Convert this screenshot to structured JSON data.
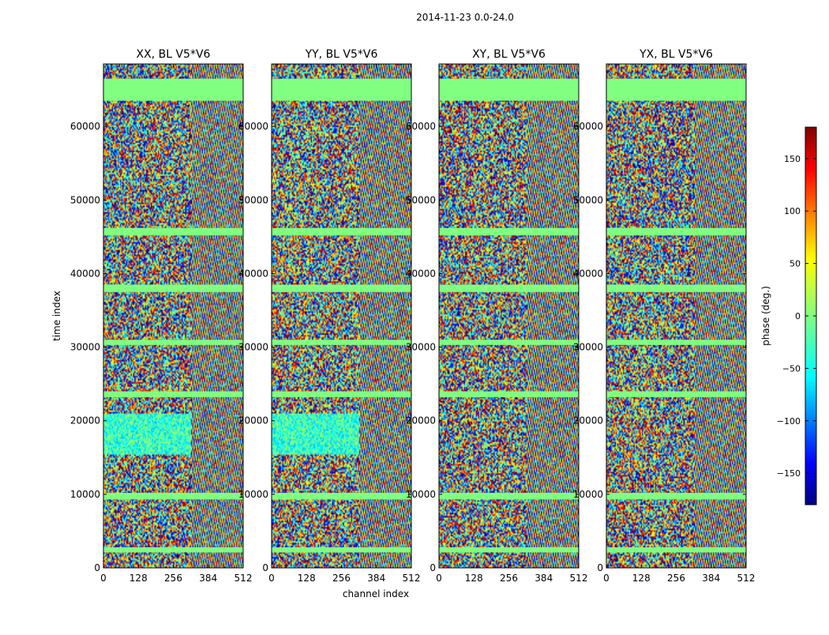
{
  "chart_data": {
    "type": "heatmap",
    "title": "2014-11-23 0.0-24.0",
    "xlabel": "channel index",
    "ylabel": "time index",
    "colorbar": {
      "label": "phase (deg.)",
      "range": [
        -180,
        180
      ],
      "ticks": [
        -150,
        -100,
        -50,
        0,
        50,
        100,
        150
      ],
      "colormap": "jet"
    },
    "x_ticks": [
      0,
      128,
      256,
      384,
      512
    ],
    "xlim": [
      0,
      512
    ],
    "y_ticks": [
      0,
      10000,
      20000,
      30000,
      40000,
      50000,
      60000
    ],
    "ylim": [
      0,
      68500
    ],
    "panels": [
      {
        "title": "XX, BL V5*V6",
        "polarization": "XX",
        "baseline": "V5*V6"
      },
      {
        "title": "YY, BL V5*V6",
        "polarization": "YY",
        "baseline": "V5*V6"
      },
      {
        "title": "XY, BL V5*V6",
        "polarization": "XY",
        "baseline": "V5*V6"
      },
      {
        "title": "YX, BL V5*V6",
        "polarization": "YX",
        "baseline": "V5*V6"
      }
    ],
    "flagged_bands_time_index": [
      [
        63500,
        66500
      ],
      [
        45200,
        46200
      ],
      [
        37500,
        38500
      ],
      [
        30300,
        31000
      ],
      [
        23200,
        24000
      ],
      [
        9300,
        10200
      ],
      [
        2100,
        2800
      ]
    ],
    "colors": {
      "flagged": "#80ff80",
      "background": "#ffffff"
    }
  }
}
